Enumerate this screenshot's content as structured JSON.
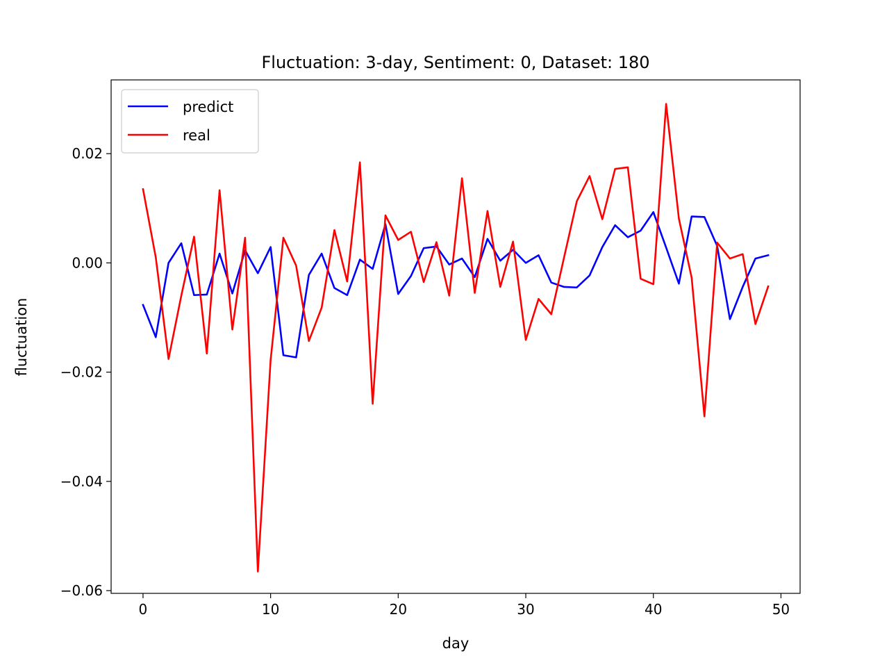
{
  "chart_data": {
    "type": "line",
    "title": "Fluctuation: 3-day, Sentiment: 0, Dataset: 180",
    "xlabel": "day",
    "ylabel": "fluctuation",
    "xlim": [
      -2.5,
      51.5
    ],
    "ylim": [
      -0.0605,
      0.0335
    ],
    "xticks": [
      0,
      10,
      20,
      30,
      40,
      50
    ],
    "xtick_labels": [
      "0",
      "10",
      "20",
      "30",
      "40",
      "50"
    ],
    "yticks": [
      0.02,
      0.0,
      -0.02,
      -0.04,
      -0.06
    ],
    "ytick_labels": [
      "0.02",
      "0.00",
      "−0.02",
      "−0.04",
      "−0.06"
    ],
    "grid": false,
    "legend": "top-left",
    "x": [
      0,
      1,
      2,
      3,
      4,
      5,
      6,
      7,
      8,
      9,
      10,
      11,
      12,
      13,
      14,
      15,
      16,
      17,
      18,
      19,
      20,
      21,
      22,
      23,
      24,
      25,
      26,
      27,
      28,
      29,
      30,
      31,
      32,
      33,
      34,
      35,
      36,
      37,
      38,
      39,
      40,
      41,
      42,
      43,
      44,
      45,
      46,
      47,
      48,
      49
    ],
    "series": [
      {
        "name": "predict",
        "color": "#0000ff",
        "values": [
          -0.0077,
          -0.0136,
          0.0,
          0.0036,
          -0.0059,
          -0.0058,
          0.0017,
          -0.0056,
          0.0023,
          -0.0019,
          0.0029,
          -0.0169,
          -0.0173,
          -0.0022,
          0.0017,
          -0.0046,
          -0.0059,
          0.0006,
          -0.0011,
          0.0071,
          -0.0057,
          -0.0024,
          0.0027,
          0.003,
          -0.0003,
          0.0008,
          -0.0026,
          0.0044,
          0.0004,
          0.0024,
          0.0,
          0.0014,
          -0.0036,
          -0.0044,
          -0.0045,
          -0.0023,
          0.0029,
          0.0069,
          0.0047,
          0.0059,
          0.0093,
          0.0028,
          -0.0038,
          0.0085,
          0.0084,
          0.0031,
          -0.0103,
          -0.0044,
          0.0008,
          0.0014
        ]
      },
      {
        "name": "real",
        "color": "#ff0000",
        "values": [
          0.0135,
          0.001,
          -0.0176,
          -0.006,
          0.0048,
          -0.0166,
          0.0133,
          -0.0122,
          0.0046,
          -0.0565,
          -0.0178,
          0.0046,
          -0.0005,
          -0.0143,
          -0.0082,
          0.006,
          -0.0034,
          0.0184,
          -0.0258,
          0.0087,
          0.0042,
          0.0057,
          -0.0035,
          0.0038,
          -0.006,
          0.0155,
          -0.0055,
          0.0095,
          -0.0044,
          0.0039,
          -0.0141,
          -0.0066,
          -0.0094,
          0.001,
          0.0113,
          0.0159,
          0.008,
          0.0172,
          0.0175,
          -0.0029,
          -0.0039,
          0.0291,
          0.0081,
          -0.0027,
          -0.0281,
          0.0037,
          0.0008,
          0.0016,
          -0.0112,
          -0.0043
        ]
      }
    ]
  }
}
